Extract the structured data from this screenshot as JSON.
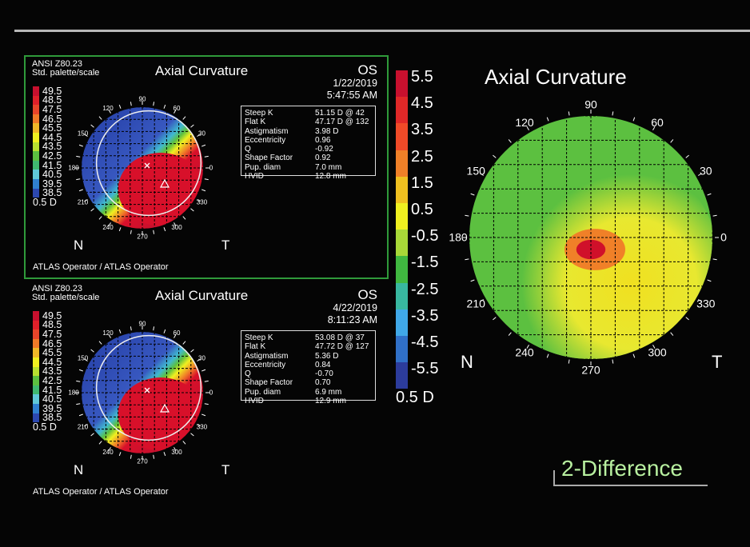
{
  "panels": [
    {
      "standard": "ANSI Z80.23",
      "palette": "Std. palette/scale",
      "title": "Axial Curvature",
      "eye": "OS",
      "date": "1/22/2019",
      "time": "5:47:55 AM",
      "step": "0.5 D",
      "operator": "ATLAS Operator / ATLAS Operator",
      "nasal": "N",
      "temporal": "T",
      "metrics": [
        {
          "label": "Steep K",
          "value": "51.15 D @ 42"
        },
        {
          "label": "Flat K",
          "value": "47.17 D @ 132"
        },
        {
          "label": "Astigmatism",
          "value": "3.98 D"
        },
        {
          "label": "Eccentricity",
          "value": "0.96"
        },
        {
          "label": "Q",
          "value": "-0.92"
        },
        {
          "label": "Shape Factor",
          "value": "0.92"
        },
        {
          "label": "Pup. diam",
          "value": "7.0 mm"
        },
        {
          "label": "HVID",
          "value": "12.8 mm"
        }
      ]
    },
    {
      "standard": "ANSI Z80.23",
      "palette": "Std. palette/scale",
      "title": "Axial Curvature",
      "eye": "OS",
      "date": "4/22/2019",
      "time": "8:11:23 AM",
      "step": "0.5 D",
      "operator": "ATLAS Operator / ATLAS Operator",
      "nasal": "N",
      "temporal": "T",
      "metrics": [
        {
          "label": "Steep K",
          "value": "53.08 D @ 37"
        },
        {
          "label": "Flat K",
          "value": "47.72 D @ 127"
        },
        {
          "label": "Astigmatism",
          "value": "5.36 D"
        },
        {
          "label": "Eccentricity",
          "value": "0.84"
        },
        {
          "label": "Q",
          "value": "-0.70"
        },
        {
          "label": "Shape Factor",
          "value": "0.70"
        },
        {
          "label": "Pup. diam",
          "value": "6.9 mm"
        },
        {
          "label": "HVID",
          "value": "12.9 mm"
        }
      ]
    }
  ],
  "scale": {
    "labels": [
      "49.5",
      "48.5",
      "47.5",
      "46.5",
      "45.5",
      "44.5",
      "43.5",
      "42.5",
      "41.5",
      "40.5",
      "39.5",
      "38.5"
    ],
    "colors": [
      "#c8102e",
      "#e0202a",
      "#e8452a",
      "#f07a28",
      "#f0b828",
      "#f0f020",
      "#b8e030",
      "#5cc040",
      "#40b870",
      "#60c8d8",
      "#3080d0",
      "#2c48b0"
    ]
  },
  "difference": {
    "title": "Axial Curvature",
    "label": "2-Difference",
    "step": "0.5 D",
    "nasal": "N",
    "temporal": "T",
    "scale_labels": [
      "5.5",
      "4.5",
      "3.5",
      "2.5",
      "1.5",
      "0.5",
      "-0.5",
      "-1.5",
      "-2.5",
      "-3.5",
      "-4.5",
      "-5.5"
    ],
    "scale_colors": [
      "#c8102e",
      "#e02828",
      "#f04a28",
      "#f08028",
      "#f0c020",
      "#f0f020",
      "#a8d838",
      "#40b840",
      "#38b8a0",
      "#40a8e8",
      "#3070c8",
      "#2c3c9c"
    ]
  },
  "angle_labels": [
    "0",
    "30",
    "60",
    "90",
    "120",
    "150",
    "180",
    "210",
    "240",
    "270",
    "300",
    "330"
  ]
}
